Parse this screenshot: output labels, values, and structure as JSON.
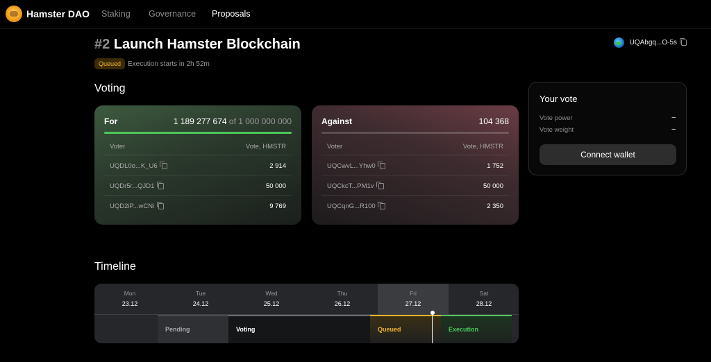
{
  "header": {
    "brand": "Hamster DAO",
    "nav": [
      "Staking",
      "Governance",
      "Proposals"
    ],
    "active_nav": "Proposals"
  },
  "wallet": {
    "address": "UQAbgq...O-5s"
  },
  "proposal": {
    "number": "#2",
    "title": "Launch Hamster Blockchain",
    "status": "Queued",
    "status_color": "#f0b32a",
    "execution_note": "Execution starts in 2h 52m"
  },
  "voting": {
    "heading": "Voting",
    "for": {
      "label": "For",
      "total": "1 189 277 674",
      "of_text": "of 1 000 000 000",
      "progress": 1.0,
      "color": "#4cc75a",
      "col_voter": "Voter",
      "col_vote": "Vote, HMSTR",
      "rows": [
        {
          "voter": "UQDL0o...K_U6",
          "vote": "2 914"
        },
        {
          "voter": "UQDr5r...QJD1",
          "vote": "50 000"
        },
        {
          "voter": "UQD2iP...wCNi",
          "vote": "9 769"
        }
      ]
    },
    "against": {
      "label": "Against",
      "total": "104 368",
      "progress": 0.0,
      "color": "#e0606e",
      "col_voter": "Voter",
      "col_vote": "Vote, HMSTR",
      "rows": [
        {
          "voter": "UQCwvL...Yhw0",
          "vote": "1 752"
        },
        {
          "voter": "UQCkcT...PM1v",
          "vote": "50 000"
        },
        {
          "voter": "UQCqnG...R100",
          "vote": "2 350"
        }
      ]
    }
  },
  "your_vote": {
    "title": "Your vote",
    "power_label": "Vote power",
    "power_value": "–",
    "weight_label": "Vote weight",
    "weight_value": "–",
    "connect_label": "Connect wallet"
  },
  "timeline": {
    "heading": "Timeline",
    "days": [
      {
        "name": "Mon",
        "date": "23.12"
      },
      {
        "name": "Tue",
        "date": "24.12"
      },
      {
        "name": "Wed",
        "date": "25.12"
      },
      {
        "name": "Thu",
        "date": "26.12"
      },
      {
        "name": "Fri",
        "date": "27.12"
      },
      {
        "name": "Sat",
        "date": "28.12"
      }
    ],
    "today": "Fri",
    "phases": [
      {
        "label": "Pending",
        "color": "#a9a9a9"
      },
      {
        "label": "Voting",
        "color": "#ffffff"
      },
      {
        "label": "Queued",
        "color": "#f0b32a"
      },
      {
        "label": "Execution",
        "color": "#4cc75a"
      }
    ]
  }
}
